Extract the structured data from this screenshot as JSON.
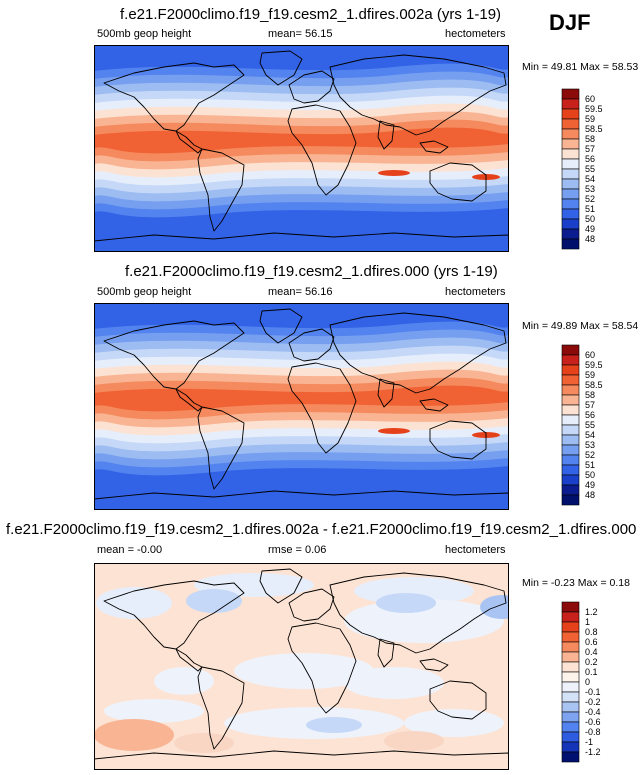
{
  "season": "DJF",
  "panels": [
    {
      "title": "f.e21.F2000climo.f19_f19.cesm2_1.dfires.002a (yrs 1-19)",
      "left_label": "500mb geop height",
      "center_label": "mean=  56.15",
      "right_label": "hectometers",
      "minmax": "Min = 49.81 Max = 58.53",
      "kind": "field",
      "colorbar": {
        "labels": [
          "60",
          "59.5",
          "59",
          "58.5",
          "58",
          "57",
          "56",
          "55",
          "54",
          "53",
          "52",
          "51",
          "50",
          "49",
          "48"
        ],
        "colors": [
          "#8b0a0a",
          "#c8201a",
          "#e5421b",
          "#f06233",
          "#f48a5d",
          "#f9b493",
          "#fce2d2",
          "#e6eefb",
          "#c5d8f7",
          "#9cbcf2",
          "#779ff0",
          "#5383ee",
          "#3262e6",
          "#1a3fc8",
          "#0a1c8e",
          "#00106b"
        ]
      }
    },
    {
      "title": "f.e21.F2000climo.f19_f19.cesm2_1.dfires.000 (yrs 1-19)",
      "left_label": "500mb geop height",
      "center_label": "mean=  56.16",
      "right_label": "hectometers",
      "minmax": "Min = 49.89 Max = 58.54",
      "kind": "field",
      "colorbar": {
        "labels": [
          "60",
          "59.5",
          "59",
          "58.5",
          "58",
          "57",
          "56",
          "55",
          "54",
          "53",
          "52",
          "51",
          "50",
          "49",
          "48"
        ],
        "colors": [
          "#8b0a0a",
          "#c8201a",
          "#e5421b",
          "#f06233",
          "#f48a5d",
          "#f9b493",
          "#fce2d2",
          "#e6eefb",
          "#c5d8f7",
          "#9cbcf2",
          "#779ff0",
          "#5383ee",
          "#3262e6",
          "#1a3fc8",
          "#0a1c8e",
          "#00106b"
        ]
      }
    },
    {
      "title": "f.e21.F2000climo.f19_f19.cesm2_1.dfires.002a - f.e21.F2000climo.f19_f19.cesm2_1.dfires.000",
      "left_label": "mean = -0.00",
      "center_label": "rmse =  0.06",
      "right_label": "hectometers",
      "minmax": "Min = -0.23 Max =  0.18",
      "kind": "diff",
      "colorbar": {
        "labels": [
          "1.2",
          "1",
          "0.8",
          "0.6",
          "0.4",
          "0.2",
          "0.1",
          "0",
          "-0.1",
          "-0.2",
          "-0.4",
          "-0.6",
          "-0.8",
          "-1",
          "-1.2"
        ],
        "colors": [
          "#8b0a0a",
          "#c8201a",
          "#e5421b",
          "#f06233",
          "#f48a5d",
          "#f9b493",
          "#fde3d3",
          "#fff4ec",
          "#eef2fb",
          "#d4e2f8",
          "#a9c4f3",
          "#7ea4ef",
          "#5383ee",
          "#2d5ce0",
          "#1535b8",
          "#001070"
        ]
      }
    }
  ]
}
